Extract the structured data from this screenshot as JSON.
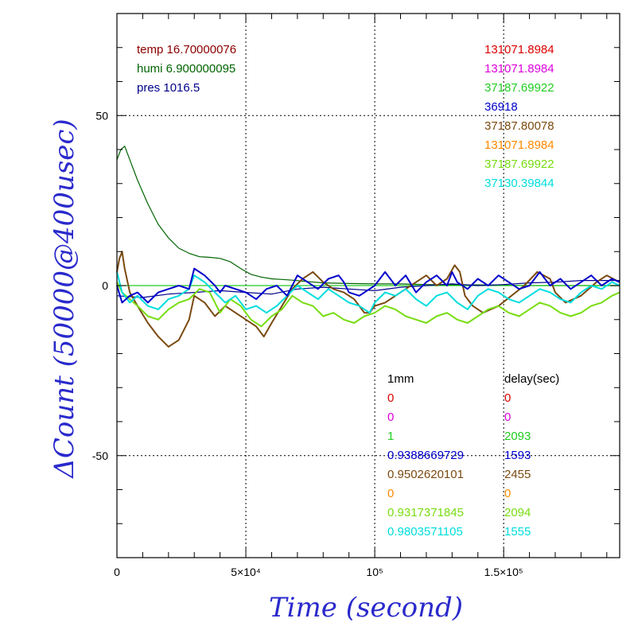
{
  "chart_data": {
    "type": "line",
    "xlabel": "Time (second)",
    "ylabel": "ΔCount (50000@400usec)",
    "xlim": [
      0,
      195000
    ],
    "ylim": [
      -80,
      80
    ],
    "grid": true,
    "x_ticks": [
      {
        "value": 0,
        "label": "0"
      },
      {
        "value": 50000,
        "label": "5×10⁴"
      },
      {
        "value": 100000,
        "label": "10⁵"
      },
      {
        "value": 150000,
        "label": "1.5×10⁵"
      }
    ],
    "y_ticks": [
      {
        "value": 50,
        "label": "50"
      },
      {
        "value": 0,
        "label": "0"
      },
      {
        "value": -50,
        "label": "-50"
      }
    ],
    "environment": [
      {
        "text": "temp 16.70000076",
        "color": "#8b0000"
      },
      {
        "text": "humi 6.900000095",
        "color": "#006400"
      },
      {
        "text": "pres 1016.5",
        "color": "#00008b"
      }
    ],
    "right_values": [
      {
        "text": "131071.8984",
        "color": "#dd0000"
      },
      {
        "text": "131071.8984",
        "color": "#dd00dd"
      },
      {
        "text": "37187.69922",
        "color": "#22cc22"
      },
      {
        "text": "36918",
        "color": "#0000cc"
      },
      {
        "text": "37187.80078",
        "color": "#7a4a10"
      },
      {
        "text": "131071.8984",
        "color": "#ff8800"
      },
      {
        "text": "37187.69922",
        "color": "#77dd11"
      },
      {
        "text": "37130.39844",
        "color": "#00dddd"
      }
    ],
    "table_headers": [
      "1mm",
      "delay(sec)"
    ],
    "table_rows": [
      {
        "mm": "0",
        "delay": "0",
        "color": "#dd0000"
      },
      {
        "mm": "0",
        "delay": "0",
        "color": "#dd00dd"
      },
      {
        "mm": "1",
        "delay": "2093",
        "color": "#22cc22"
      },
      {
        "mm": "0.9388669729",
        "delay": "1593",
        "color": "#0000cc"
      },
      {
        "mm": "0.9502620101",
        "delay": "2455",
        "color": "#7a4a10"
      },
      {
        "mm": "0",
        "delay": "0",
        "color": "#ff8800"
      },
      {
        "mm": "0.9317371845",
        "delay": "2094",
        "color": "#77dd11"
      },
      {
        "mm": "0.9803571105",
        "delay": "1555",
        "color": "#00dddd"
      }
    ],
    "series": [
      {
        "color": "#006400",
        "width": 1.2,
        "x": [
          0,
          1500,
          3000,
          5000,
          8000,
          12000,
          16000,
          20000,
          24000,
          28000,
          32000,
          36000,
          40000,
          44000,
          48000,
          52000,
          56000,
          60000,
          64000,
          68000,
          72000,
          80000,
          90000,
          100000,
          110000,
          120000,
          130000,
          140000,
          150000,
          160000,
          170000,
          180000,
          195000
        ],
        "y": [
          37,
          40,
          41,
          37,
          31,
          24,
          18,
          14,
          11,
          9.5,
          8.5,
          8.3,
          8,
          7,
          5,
          3.3,
          2.5,
          2,
          1.8,
          1.6,
          1.3,
          0.8,
          0.6,
          0.5,
          0.5,
          0.3,
          0.2,
          0.2,
          0.1,
          0,
          0,
          0,
          0
        ]
      },
      {
        "color": "#22cc22",
        "width": 1.2,
        "x": [
          0,
          195000
        ],
        "y": [
          0,
          0
        ]
      },
      {
        "color": "#00008b",
        "width": 1.2,
        "x": [
          0,
          10000,
          20000,
          30000,
          40000,
          50000,
          60000,
          70000,
          80000,
          90000,
          100000,
          110000,
          120000,
          130000,
          140000,
          150000,
          160000,
          170000,
          180000,
          195000
        ],
        "y": [
          -3,
          -3.5,
          -2.5,
          -2,
          -1.5,
          -2,
          -2.5,
          -1,
          -0.5,
          -1,
          -1.5,
          -0.5,
          0,
          0.5,
          0,
          0.3,
          0.8,
          1,
          1.5,
          1.5
        ]
      },
      {
        "color": "#7a4a10",
        "width": 2,
        "x": [
          0,
          1000,
          2000,
          3000,
          5000,
          8000,
          12000,
          16000,
          20000,
          24000,
          28000,
          30000,
          34000,
          38000,
          42000,
          46000,
          50000,
          54000,
          57000,
          60000,
          64000,
          68000,
          72000,
          76000,
          80000,
          84000,
          88000,
          92000,
          96000,
          98000,
          100000,
          104000,
          110000,
          116000,
          120000,
          124000,
          128000,
          131000,
          133000,
          135000,
          138000,
          142000,
          148000,
          153000,
          158000,
          163000,
          168000,
          170000,
          174000,
          180000,
          186000,
          190000,
          195000
        ],
        "y": [
          4,
          8,
          10,
          5,
          -2,
          -6,
          -11,
          -15,
          -18,
          -16,
          -10,
          -3,
          -5,
          -9,
          -6,
          -8,
          -10,
          -12,
          -15,
          -11,
          -6,
          -1,
          2,
          4,
          1,
          -1,
          -2,
          -4,
          -8,
          -8,
          -6,
          -5,
          -2,
          1,
          3,
          0,
          2,
          6,
          4,
          -3,
          -6,
          -8,
          -6,
          -3,
          0,
          4,
          2,
          -2,
          -5,
          -3,
          1,
          3,
          1
        ]
      },
      {
        "color": "#77dd11",
        "width": 2,
        "x": [
          0,
          2000,
          5000,
          8000,
          12000,
          16000,
          20000,
          24000,
          28000,
          32000,
          36000,
          40000,
          44000,
          48000,
          52000,
          56000,
          60000,
          64000,
          68000,
          72000,
          76000,
          80000,
          84000,
          88000,
          92000,
          96000,
          100000,
          104000,
          108000,
          112000,
          116000,
          120000,
          124000,
          128000,
          132000,
          136000,
          140000,
          144000,
          148000,
          152000,
          156000,
          160000,
          164000,
          168000,
          172000,
          176000,
          180000,
          184000,
          188000,
          192000,
          195000
        ],
        "y": [
          1,
          -2,
          -4,
          -6,
          -9,
          -10,
          -7,
          -5,
          -4,
          -1,
          -2,
          -8,
          -4,
          -6,
          -10,
          -12,
          -9,
          -7,
          -3,
          -5,
          -6,
          -9,
          -8,
          -10,
          -11,
          -9,
          -8,
          -6,
          -7,
          -9,
          -10,
          -11,
          -9,
          -8,
          -10,
          -11,
          -9,
          -7,
          -6,
          -8,
          -9,
          -7,
          -5,
          -6,
          -8,
          -9,
          -8,
          -6,
          -5,
          -3,
          -2
        ]
      },
      {
        "color": "#00dddd",
        "width": 2,
        "x": [
          0,
          2000,
          5000,
          8000,
          12000,
          16000,
          20000,
          24000,
          28000,
          30000,
          34000,
          38000,
          42000,
          46000,
          50000,
          54000,
          58000,
          62000,
          66000,
          70000,
          74000,
          78000,
          82000,
          86000,
          90000,
          94000,
          98000,
          100000,
          104000,
          108000,
          112000,
          116000,
          120000,
          124000,
          128000,
          132000,
          136000,
          140000,
          144000,
          148000,
          152000,
          156000,
          160000,
          164000,
          168000,
          172000,
          176000,
          180000,
          184000,
          188000,
          192000,
          195000
        ],
        "y": [
          4,
          -2,
          -5,
          -3,
          -6,
          -7,
          -4,
          -3,
          -1,
          3,
          1,
          -2,
          -5,
          -3,
          -7,
          -6,
          -8,
          -6,
          -3,
          0,
          -2,
          -4,
          -1,
          -3,
          -5,
          -6,
          -8,
          -5,
          -2,
          -3,
          -1,
          -4,
          -6,
          -3,
          -2,
          -5,
          -7,
          -3,
          -1,
          -2,
          -4,
          -5,
          -3,
          -1,
          -2,
          -4,
          -5,
          -2,
          0,
          -1,
          1,
          0
        ]
      },
      {
        "color": "#0000cc",
        "width": 2,
        "x": [
          0,
          2000,
          5000,
          8000,
          12000,
          16000,
          20000,
          24000,
          28000,
          30000,
          34000,
          38000,
          40000,
          42000,
          46000,
          50000,
          54000,
          58000,
          62000,
          66000,
          68000,
          70000,
          74000,
          78000,
          82000,
          86000,
          88000,
          90000,
          94000,
          98000,
          100000,
          104000,
          108000,
          112000,
          116000,
          120000,
          124000,
          128000,
          130000,
          132000,
          136000,
          140000,
          144000,
          148000,
          152000,
          156000,
          160000,
          164000,
          168000,
          172000,
          176000,
          180000,
          184000,
          188000,
          192000,
          195000
        ],
        "y": [
          0,
          -5,
          -3,
          -2,
          -5,
          -2,
          -1,
          0,
          -1,
          5,
          3,
          0,
          -2,
          0,
          -1,
          -2,
          -4,
          -1,
          0,
          -3,
          0,
          3,
          1,
          -1,
          2,
          3,
          1,
          -2,
          -3,
          -1,
          0,
          4,
          0,
          3,
          -2,
          1,
          3,
          0,
          4,
          1,
          -1,
          2,
          0,
          3,
          1,
          -1,
          0,
          4,
          0,
          2,
          -1,
          1,
          3,
          0,
          2,
          1
        ]
      }
    ]
  }
}
